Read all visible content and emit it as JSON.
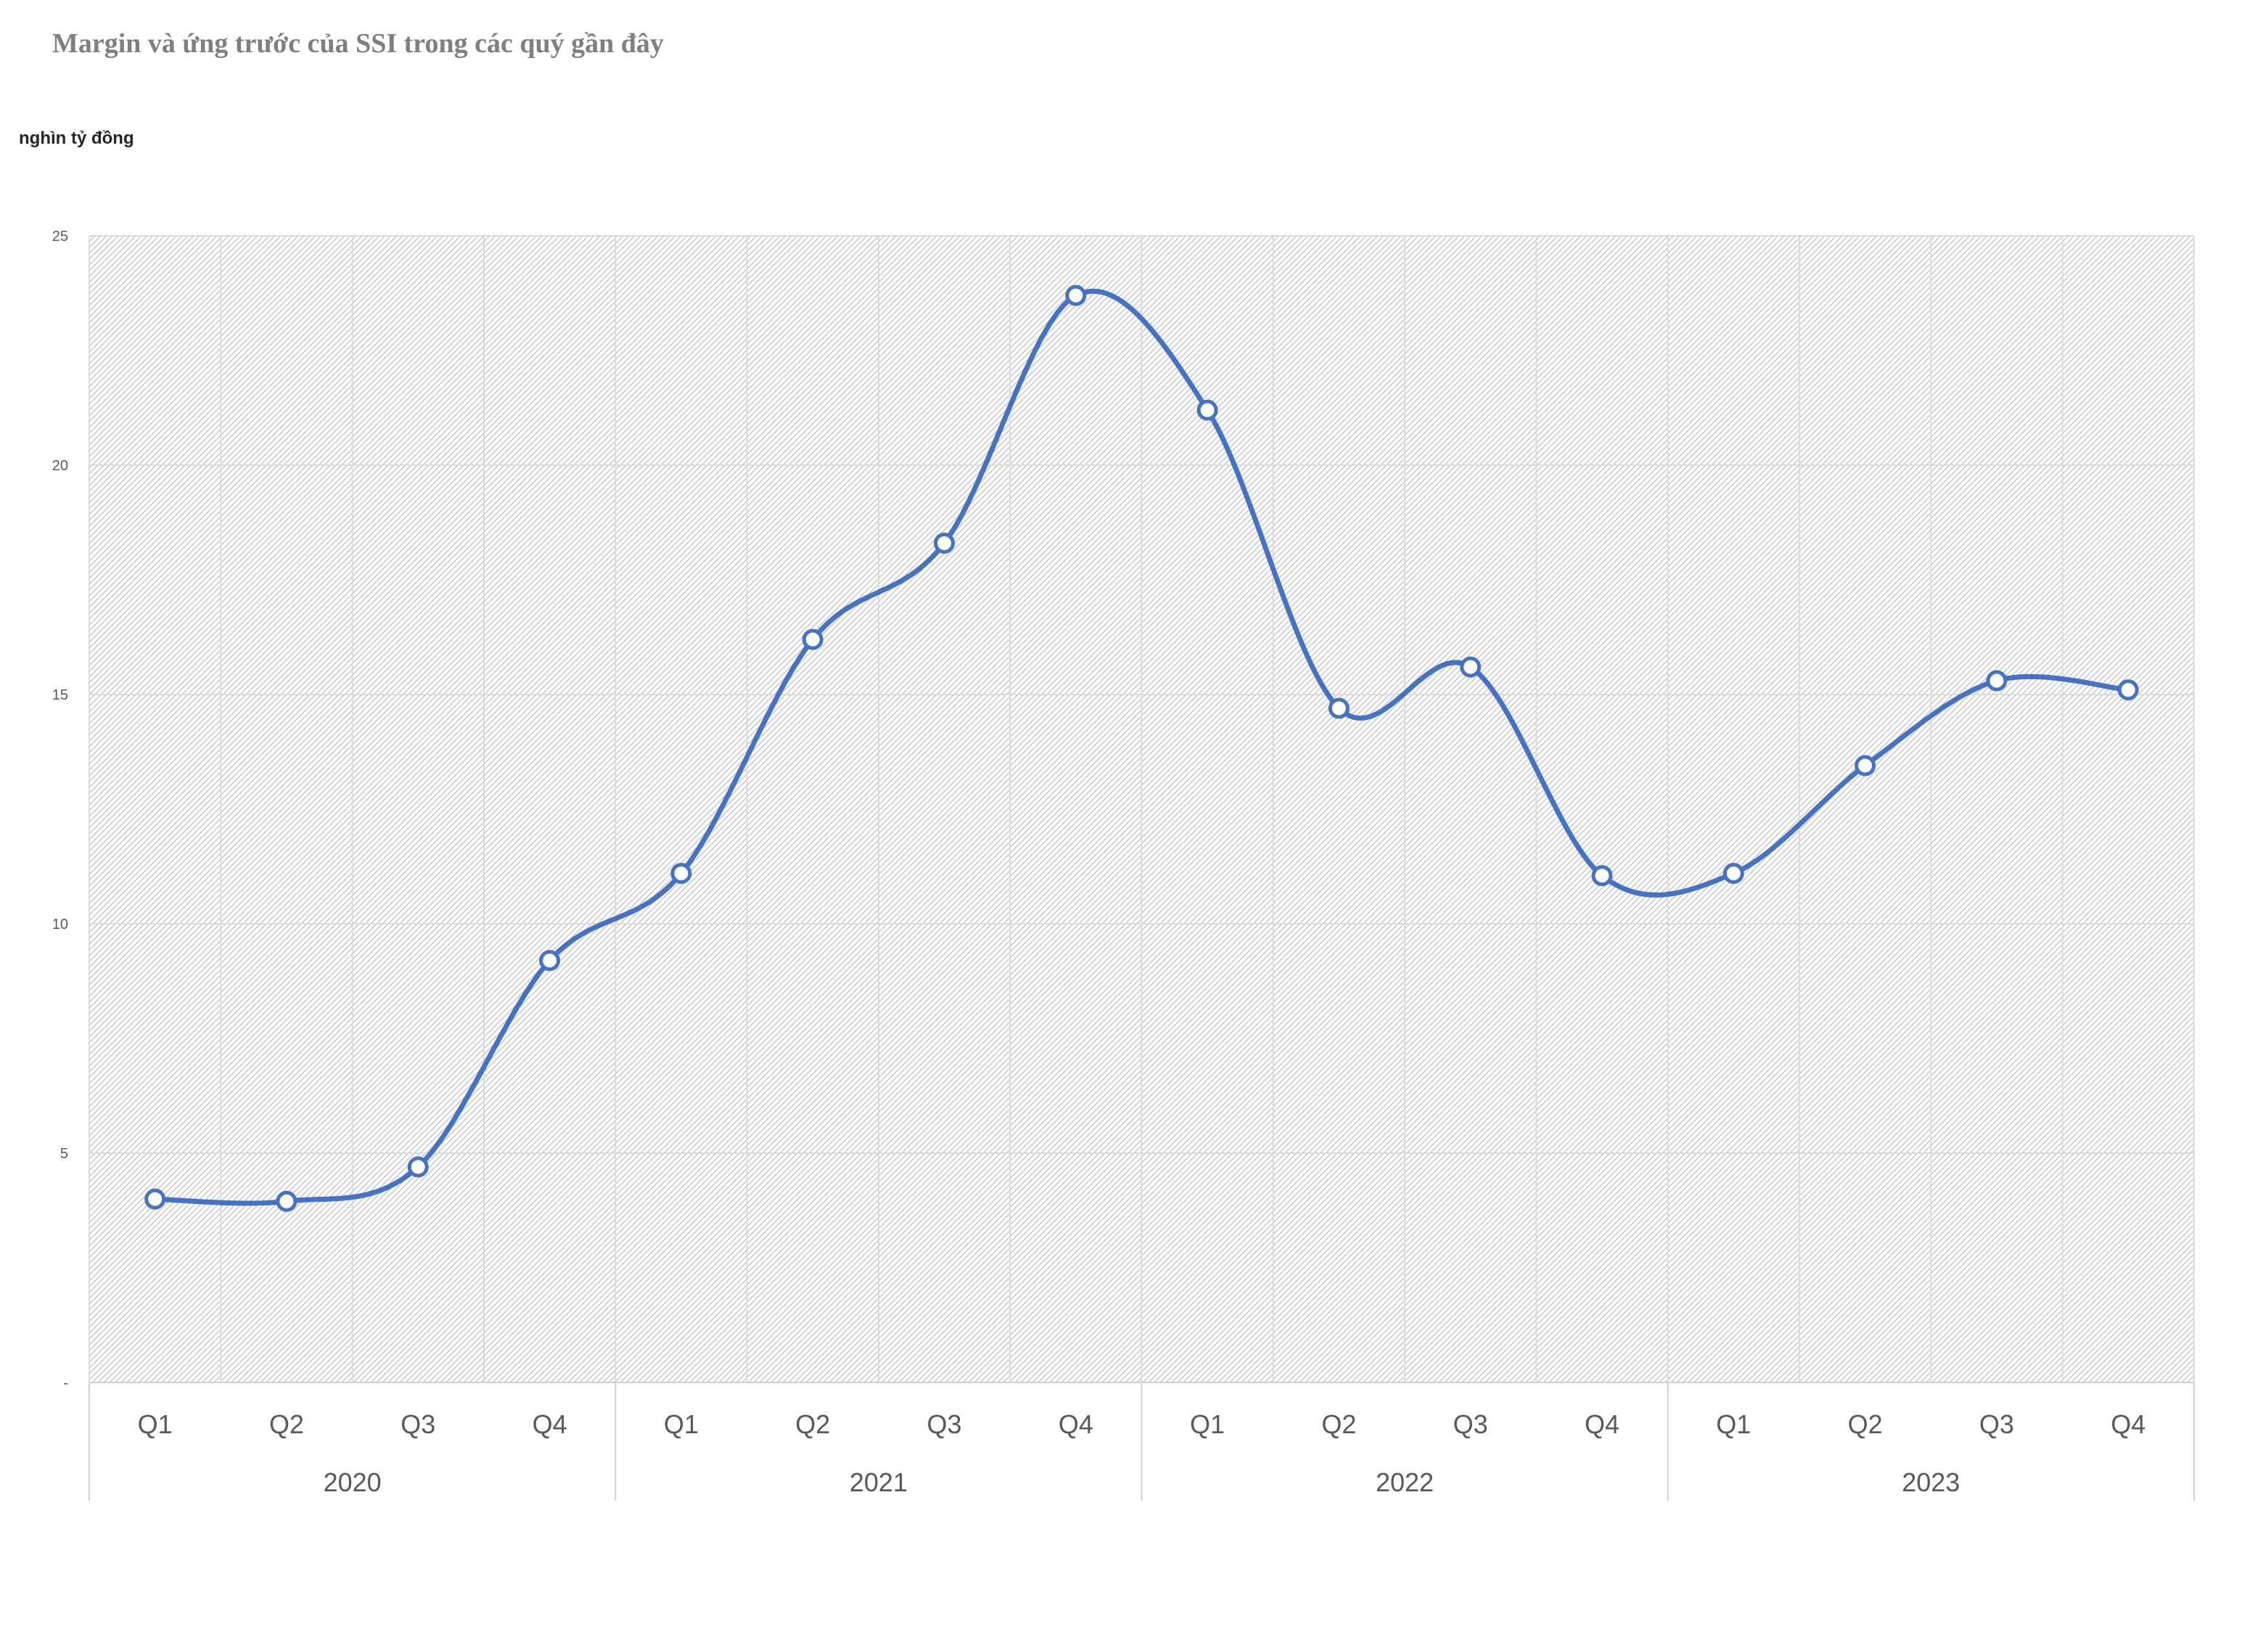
{
  "chart_data": {
    "type": "line",
    "title": "Margin và ứng trước của SSI trong các quý gần đây",
    "ylabel": "nghìn tỷ đồng",
    "xlabel": "",
    "ylim": [
      0,
      25
    ],
    "yticks": [
      0,
      5,
      10,
      15,
      20,
      25
    ],
    "ytick_labels": [
      "-",
      "5",
      "10",
      "15",
      "20",
      "25"
    ],
    "grid": true,
    "smooth": true,
    "categories": [
      "Q1",
      "Q2",
      "Q3",
      "Q4",
      "Q1",
      "Q2",
      "Q3",
      "Q4",
      "Q1",
      "Q2",
      "Q3",
      "Q4",
      "Q1",
      "Q2",
      "Q3",
      "Q4"
    ],
    "groups": [
      {
        "label": "2020",
        "count": 4
      },
      {
        "label": "2021",
        "count": 4
      },
      {
        "label": "2022",
        "count": 4
      },
      {
        "label": "2023",
        "count": 4
      }
    ],
    "series": [
      {
        "color": "#4472C4",
        "values": [
          4.0,
          3.95,
          4.7,
          9.2,
          11.1,
          16.2,
          18.3,
          23.7,
          21.2,
          14.7,
          15.6,
          11.05,
          11.1,
          13.45,
          15.3,
          15.1
        ]
      }
    ]
  }
}
